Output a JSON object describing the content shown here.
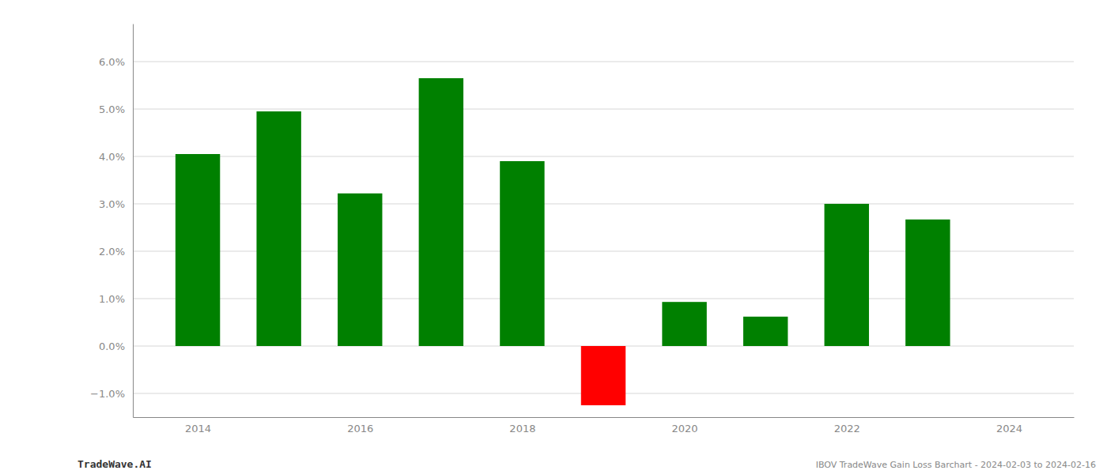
{
  "chart_data": {
    "type": "bar",
    "title": "IBOV TradeWave Gain Loss Barchart - 2024-02-03 to 2024-02-16",
    "annotations": [
      "TradeWave.AI"
    ],
    "x": [
      2014,
      2015,
      2016,
      2017,
      2018,
      2019,
      2020,
      2021,
      2022,
      2023
    ],
    "values": [
      0.0405,
      0.0495,
      0.0322,
      0.0565,
      0.039,
      -0.0125,
      0.0093,
      0.0062,
      0.03,
      0.0267
    ],
    "colors": [
      "#008000",
      "#008000",
      "#008000",
      "#008000",
      "#008000",
      "#ff0000",
      "#008000",
      "#008000",
      "#008000",
      "#008000"
    ],
    "xlim": [
      2013.2,
      2024.8
    ],
    "xticks": [
      2014,
      2016,
      2018,
      2020,
      2022,
      2024
    ],
    "ylim": [
      -0.015,
      0.068
    ],
    "yticks": [
      {
        "value": -0.01,
        "label": "−1.0%"
      },
      {
        "value": 0.0,
        "label": "0.0%"
      },
      {
        "value": 0.01,
        "label": "1.0%"
      },
      {
        "value": 0.02,
        "label": "2.0%"
      },
      {
        "value": 0.03,
        "label": "3.0%"
      },
      {
        "value": 0.04,
        "label": "4.0%"
      },
      {
        "value": 0.05,
        "label": "5.0%"
      },
      {
        "value": 0.06,
        "label": "6.0%"
      }
    ],
    "grid": true
  }
}
